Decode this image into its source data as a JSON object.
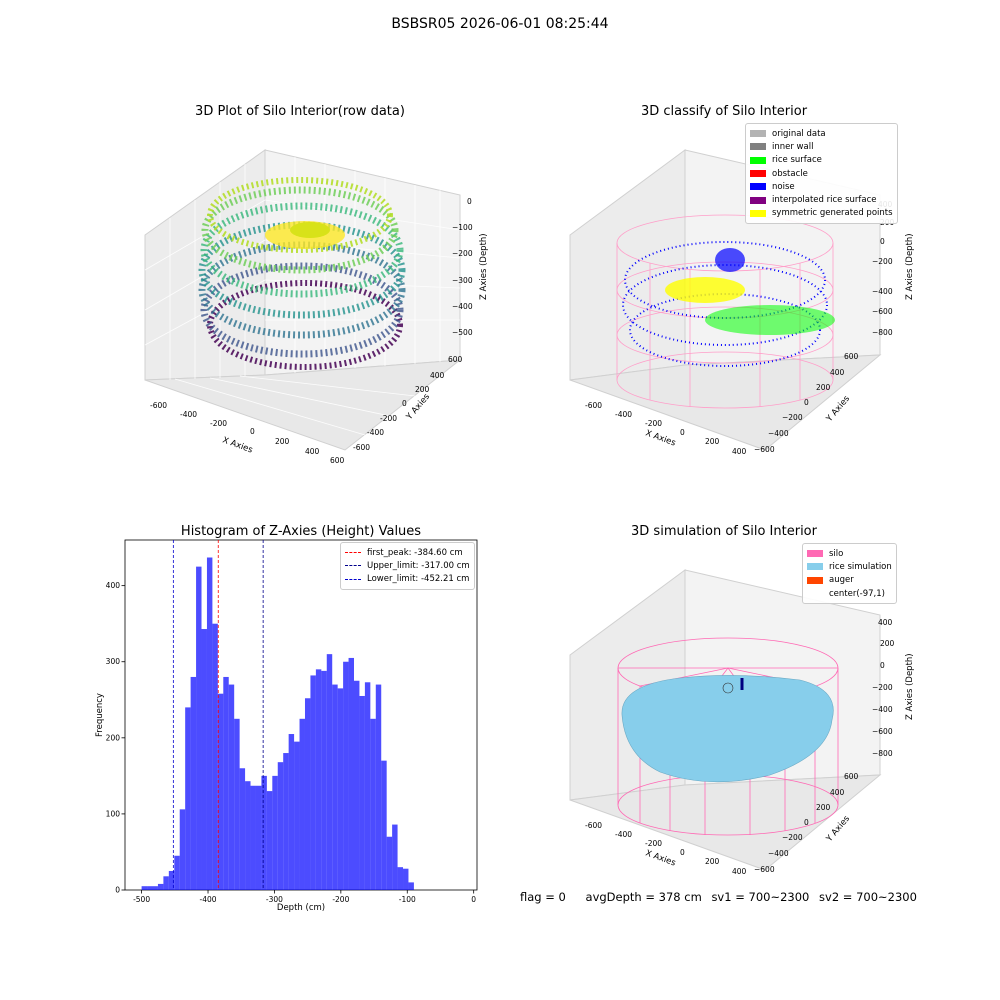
{
  "figure": {
    "title": "BSBSR05 2026-06-01 08:25:44"
  },
  "panels": {
    "raw": {
      "title": "3D Plot of Silo Interior(row data)",
      "xlabel": "X Axies",
      "ylabel": "Y Axies",
      "zlabel": "Z Axies (Depth)",
      "xticks": [
        "-600",
        "-400",
        "-200",
        "0",
        "200",
        "400",
        "600"
      ],
      "yticks": [
        "600",
        "400",
        "200",
        "0",
        "-200",
        "-400",
        "-600"
      ],
      "zticks": [
        "0",
        "−100",
        "−200",
        "−300",
        "−400",
        "−500"
      ]
    },
    "classify": {
      "title": "3D classify of Silo Interior",
      "xlabel": "X Axies",
      "ylabel": "Y Axies",
      "zlabel": "Z Axies (Depth)",
      "xticks": [
        "-600",
        "-400",
        "-200",
        "0",
        "200",
        "400"
      ],
      "yticks": [
        "600",
        "400",
        "200",
        "0",
        "−200",
        "−400",
        "−600"
      ],
      "zticks": [
        "400",
        "200",
        "0",
        "−200",
        "−400",
        "−600",
        "−800"
      ],
      "legend": [
        {
          "label": "original data",
          "color": "#b3b3b3"
        },
        {
          "label": "inner wall",
          "color": "#808080"
        },
        {
          "label": "rice surface",
          "color": "#00ff00"
        },
        {
          "label": "obstacle",
          "color": "#ff0000"
        },
        {
          "label": "noise",
          "color": "#0000ff"
        },
        {
          "label": "interpolated rice surface",
          "color": "#800080"
        },
        {
          "label": "symmetric generated points",
          "color": "#ffff00"
        }
      ]
    },
    "simulation": {
      "title": "3D simulation of Silo Interior",
      "xlabel": "X Axies",
      "ylabel": "Y Axies",
      "zlabel": "Z Axies (Depth)",
      "xticks": [
        "-600",
        "-400",
        "-200",
        "0",
        "200",
        "400"
      ],
      "yticks": [
        "600",
        "400",
        "200",
        "0",
        "−200",
        "−400",
        "−600"
      ],
      "zticks": [
        "400",
        "200",
        "0",
        "−200",
        "−400",
        "−600",
        "−800"
      ],
      "legend": [
        {
          "label": "silo",
          "color": "#ff69b4"
        },
        {
          "label": "rice simulation",
          "color": "#87ceeb"
        },
        {
          "label": "auger",
          "color": "#ff4500"
        },
        {
          "label": "center(-97,1)",
          "color": "#ffffff"
        }
      ]
    }
  },
  "chart_data": {
    "type": "bar",
    "title": "Histogram of Z-Axies (Height) Values",
    "xlabel": "Depth (cm)",
    "ylabel": "Frequency",
    "xlim": [
      -525,
      5
    ],
    "ylim": [
      0,
      460
    ],
    "xticks": [
      -500,
      -400,
      -300,
      -200,
      -100,
      0
    ],
    "yticks": [
      0,
      100,
      200,
      300,
      400
    ],
    "bin_width": 8.2,
    "bin_start": -500,
    "values": [
      5,
      5,
      5,
      8,
      18,
      25,
      45,
      106,
      240,
      280,
      425,
      343,
      437,
      350,
      258,
      280,
      270,
      225,
      160,
      143,
      137,
      137,
      150,
      130,
      150,
      168,
      180,
      205,
      195,
      225,
      252,
      282,
      290,
      288,
      310,
      270,
      265,
      300,
      305,
      275,
      255,
      273,
      225,
      270,
      170,
      70,
      86,
      30,
      28,
      10
    ],
    "bar_color": "#0000ff",
    "lines": [
      {
        "label": "first_peak: -384.60 cm",
        "x": -384.6,
        "color": "#ff0000"
      },
      {
        "label": "Upper_limit: -317.00 cm",
        "x": -317.0,
        "color": "#00008b"
      },
      {
        "label": "Lower_limit: -452.21 cm",
        "x": -452.21,
        "color": "#0000cd"
      }
    ]
  },
  "status": {
    "flag": "flag = 0",
    "avg_depth": "avgDepth = 378 cm",
    "sv1": "sv1 = 700~2300",
    "sv2": "sv2 = 700~2300"
  }
}
